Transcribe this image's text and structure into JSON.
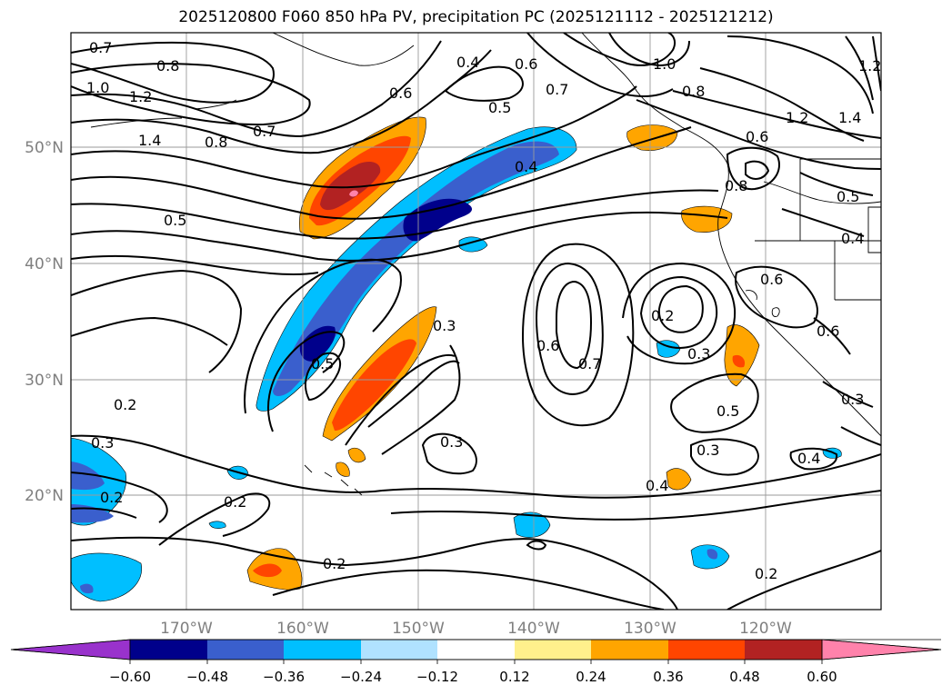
{
  "title": "2025120800 F060 850 hPa PV, precipitation PC (2025121112 - 2025121212)",
  "map": {
    "lat_labels": [
      "50°N",
      "40°N",
      "30°N",
      "20°N"
    ],
    "lon_labels": [
      "170°W",
      "160°W",
      "150°W",
      "140°W",
      "130°W",
      "120°W"
    ],
    "contour_labels": [
      "0.7",
      "0.8",
      "1.0",
      "1.2",
      "1.4",
      "0.8",
      "0.7",
      "0.5",
      "0.6",
      "0.4",
      "0.5",
      "0.4",
      "0.6",
      "0.7",
      "1.0",
      "0.8",
      "1.2",
      "1.4",
      "1.2",
      "0.6",
      "0.8",
      "0.5",
      "0.4",
      "0.6",
      "0.6",
      "0.2",
      "0.3",
      "0.6",
      "0.7",
      "0.3",
      "0.5",
      "0.5",
      "0.3",
      "0.2",
      "0.3",
      "0.2",
      "0.2",
      "0.3",
      "0.4",
      "0.4",
      "0.2",
      "0.2",
      "0.3"
    ]
  },
  "colorbar": {
    "tick_labels": [
      "−0.60",
      "−0.48",
      "−0.36",
      "−0.24",
      "−0.12",
      "0.12",
      "0.24",
      "0.36",
      "0.48",
      "0.60"
    ],
    "colors": [
      "#9932cc",
      "#00008b",
      "#3a5fcd",
      "#00bfff",
      "#b0e2ff",
      "#ffffff",
      "#fff08c",
      "#ffa500",
      "#ff4500",
      "#b22222",
      "#ff82ab"
    ]
  }
}
